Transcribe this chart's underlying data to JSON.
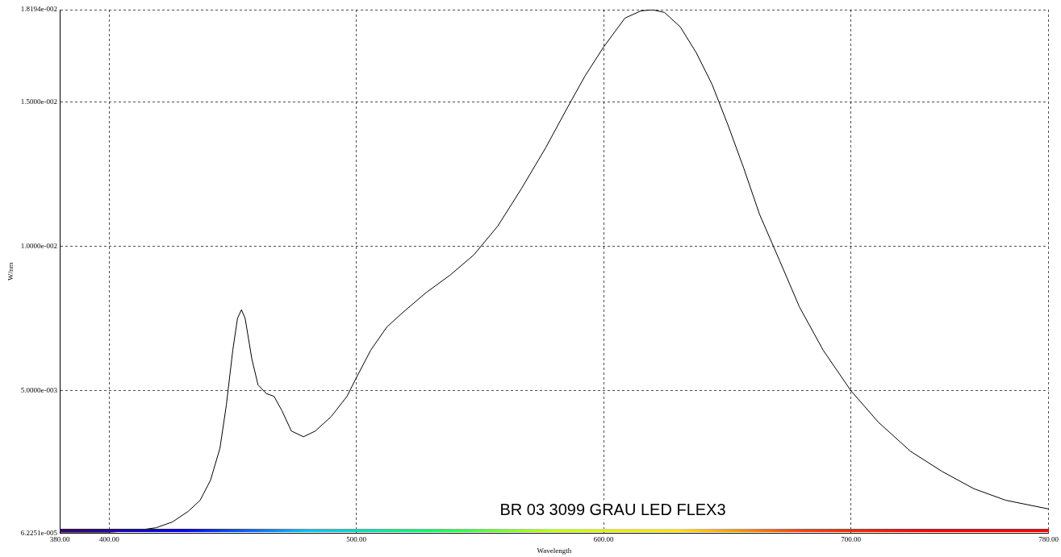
{
  "chart_data": {
    "type": "line",
    "xlabel": "Wavelength",
    "ylabel": "W/nm",
    "annotations": [
      "BR 03 3099 GRAU LED FLEX3"
    ],
    "x": [
      380,
      400,
      409.5,
      419,
      425.6,
      432,
      436.8,
      441,
      444.8,
      447.4,
      450,
      451.9,
      453.5,
      455,
      457.7,
      460.2,
      463.5,
      466.7,
      469.9,
      473.7,
      478.6,
      483.4,
      489.8,
      496.2,
      499.7,
      505.8,
      512.3,
      518.7,
      528.3,
      537.9,
      547.5,
      557.2,
      566.8,
      576.5,
      586,
      592.5,
      600,
      608.6,
      615,
      619.8,
      624.6,
      631,
      637.5,
      643.9,
      650.3,
      656.7,
      663.1,
      671.2,
      679.2,
      688.8,
      700,
      711.2,
      724.1,
      736.9,
      749.8,
      762.7,
      780
    ],
    "series": [
      {
        "color": "#000000",
        "values": [
          0.0001,
          0.0001,
          0.00014,
          0.00025,
          0.00045,
          0.00082,
          0.0012,
          0.0019,
          0.003,
          0.0045,
          0.0064,
          0.0075,
          0.0078,
          0.0075,
          0.0061,
          0.0052,
          0.0049,
          0.0048,
          0.0043,
          0.0036,
          0.0034,
          0.0036,
          0.0041,
          0.0048,
          0.0054,
          0.0064,
          0.0072,
          0.0077,
          0.0084,
          0.009,
          0.0097,
          0.0107,
          0.012,
          0.0134,
          0.0149,
          0.0159,
          0.0169,
          0.0179,
          0.01815,
          0.01819,
          0.0181,
          0.0176,
          0.0167,
          0.0156,
          0.0142,
          0.0127,
          0.0111,
          0.0095,
          0.0079,
          0.0064,
          0.005,
          0.0039,
          0.0029,
          0.0022,
          0.0016,
          0.0012,
          0.0009
        ]
      }
    ],
    "xlim": [
      380,
      780
    ],
    "xticks": [
      {
        "value": 380,
        "label": "380.00"
      },
      {
        "value": 400,
        "label": "400.00"
      },
      {
        "value": 500,
        "label": "500.00"
      },
      {
        "value": 600,
        "label": "600.00"
      },
      {
        "value": 700,
        "label": "700.00"
      },
      {
        "value": 780,
        "label": "780.00"
      }
    ],
    "ylim": [
      6.2251e-05,
      0.018194
    ],
    "yticks": [
      {
        "value": 6.2251e-05,
        "label": "6.2251e-005"
      },
      {
        "value": 0.005,
        "label": "5.0000e-003"
      },
      {
        "value": 0.01,
        "label": "1.0000e-002"
      },
      {
        "value": 0.015,
        "label": "1.5000e-002"
      },
      {
        "value": 0.018194,
        "label": "1.8194e-002"
      }
    ],
    "grid": true,
    "marker": "none",
    "line_style": "solid",
    "legend": false
  }
}
